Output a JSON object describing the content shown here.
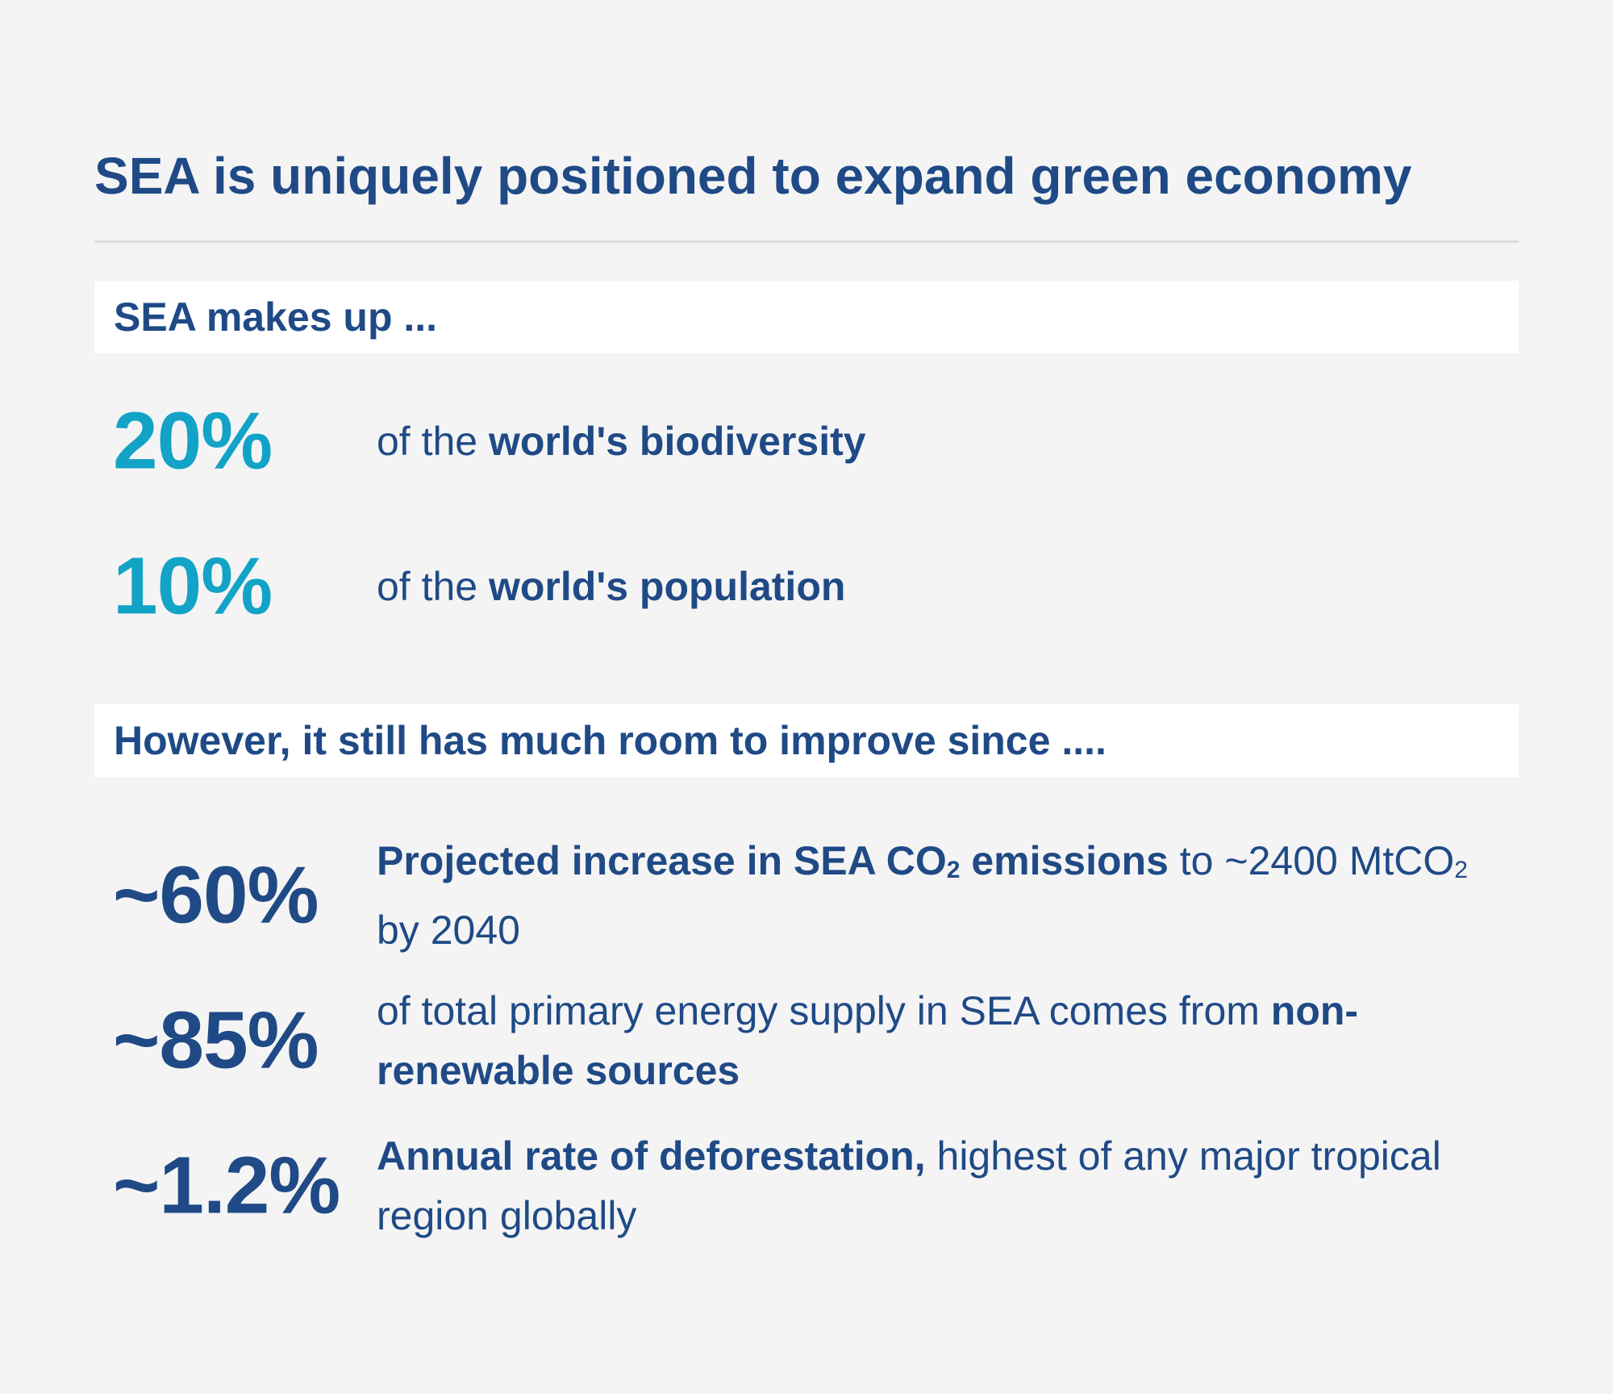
{
  "title": "SEA is uniquely positioned to expand green economy",
  "section1": {
    "heading": "SEA makes up ...",
    "stats": [
      {
        "value": "20%",
        "prefix": "of the ",
        "bold": "world's biodiversity"
      },
      {
        "value": "10%",
        "prefix": "of the ",
        "bold": "world's population"
      }
    ]
  },
  "section2": {
    "heading": "However, it still has much room to improve since ....",
    "stats": [
      {
        "value": "~60%",
        "bold_a": "Projected increase in SEA CO",
        "sub_a": "2",
        "bold_b": " emissions",
        "text_a": " to ~2400 MtCO",
        "sub_b": "2",
        "text_b": " by 2040"
      },
      {
        "value": "~85%",
        "text": "of total primary energy supply in SEA comes from ",
        "bold": "non-renewable sources"
      },
      {
        "value": "~1.2%",
        "bold": "Annual rate of deforestation,",
        "text": " highest of any major tropical region globally"
      }
    ]
  },
  "colors": {
    "navy": "#1f4a86",
    "cyan": "#12a3c7",
    "background": "#f4f4f4",
    "bar": "#ffffff"
  }
}
